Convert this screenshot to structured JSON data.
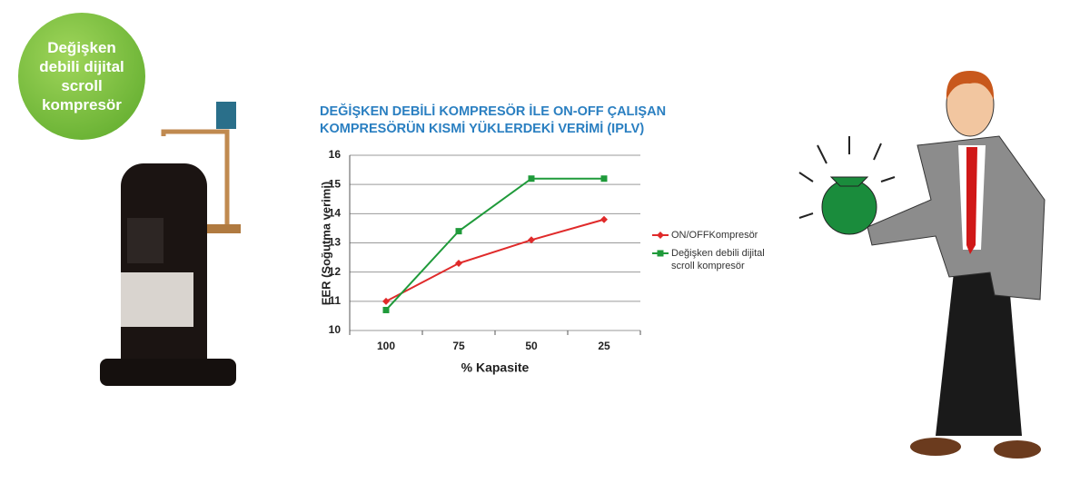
{
  "badge": "Değişken debili dijital scroll kompresör",
  "chart_data": {
    "type": "line",
    "title": [
      "DEĞİŞKEN DEBİLİ KOMPRESÖR İLE ON-OFF ÇALIŞAN",
      "KOMPRESÖRÜN KISMİ YÜKLERDEKİ VERİMİ (IPLV)"
    ],
    "x_label": "% Kapasite",
    "y_label": "EER (Soğutma verimi)",
    "categories": [
      "100",
      "75",
      "50",
      "25"
    ],
    "series": [
      {
        "name": "ON/OFFKompresör",
        "color": "#e02a2a",
        "marker": "diamond",
        "values": [
          11,
          12.3,
          13.1,
          13.8
        ]
      },
      {
        "name": "Değişken debili dijital scroll kompresör",
        "color": "#1f9a3a",
        "marker": "square",
        "values": [
          10.7,
          13.4,
          15.2,
          15.2
        ]
      }
    ],
    "ylim": [
      10,
      16
    ],
    "yticks": [
      10,
      11,
      12,
      13,
      14,
      15,
      16
    ],
    "grid": true
  }
}
